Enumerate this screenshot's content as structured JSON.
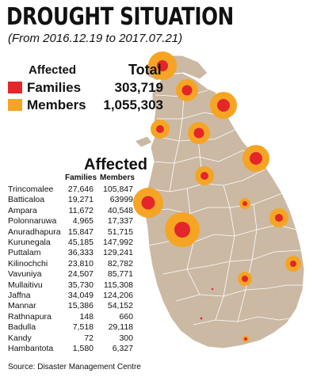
{
  "title": "DROUGHT SITUATION",
  "subtitle": "(From 2016.12.19 to 2017.07.21)",
  "legend": {
    "heading": "Affected",
    "total_heading": "Total",
    "families_label": "Families",
    "members_label": "Members",
    "families_total": "303,719",
    "members_total": "1,055,303",
    "families_color": "#e4262b",
    "members_color": "#f5a523"
  },
  "map_colors": {
    "land": "#cbb9a4",
    "border": "#ffffff",
    "sea": "#ffffff"
  },
  "table": {
    "title": "Affected",
    "col_families": "Families",
    "col_members": "Members",
    "rows": [
      {
        "district": "Trincomalee",
        "families": "27,646",
        "members": "105,847"
      },
      {
        "district": "Batticaloa",
        "families": "19,271",
        "members": "63999"
      },
      {
        "district": "Ampara",
        "families": "11,672",
        "members": "40,548"
      },
      {
        "district": "Polonnaruwa",
        "families": "4,965",
        "members": "17,337"
      },
      {
        "district": "Anuradhapura",
        "families": "15,847",
        "members": "51,715"
      },
      {
        "district": "Kurunegala",
        "families": "45,185",
        "members": "147,992"
      },
      {
        "district": "Puttalam",
        "families": "36,333",
        "members": "129,241"
      },
      {
        "district": "Kilinochchi",
        "families": "23,810",
        "members": "82,782"
      },
      {
        "district": "Vavuniya",
        "families": "24,507",
        "members": "85,771"
      },
      {
        "district": "Mullaitivu",
        "families": "35,730",
        "members": "115,308"
      },
      {
        "district": "Jaffna",
        "families": "34,049",
        "members": "124,206"
      },
      {
        "district": "Mannar",
        "families": "15,386",
        "members": "54,152"
      },
      {
        "district": "Rathnapura",
        "families": "148",
        "members": "660"
      },
      {
        "district": "Badulla",
        "families": "7,518",
        "members": "29,118"
      },
      {
        "district": "Kandy",
        "families": "72",
        "members": "300"
      },
      {
        "district": "Hambantota",
        "families": "1,580",
        "members": "6,327"
      }
    ]
  },
  "source": "Source: Disaster Management Centre"
}
